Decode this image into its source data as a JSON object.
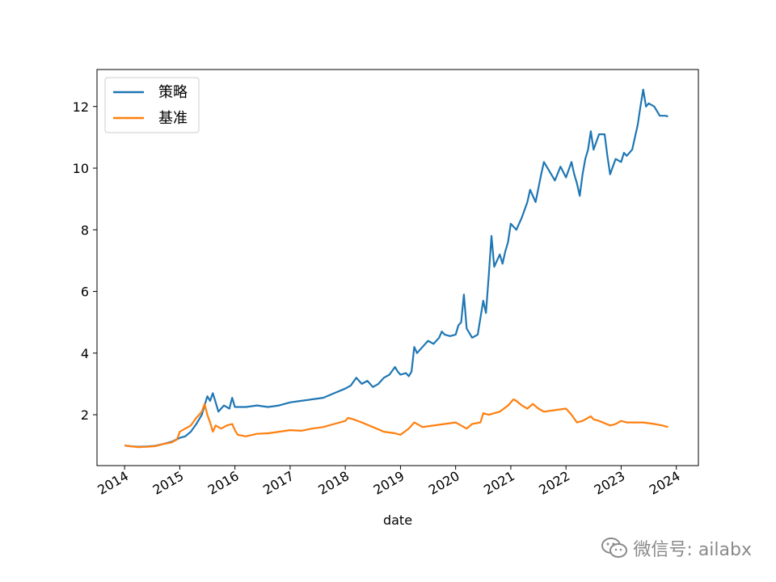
{
  "chart_data": {
    "type": "line",
    "xlabel": "date",
    "ylabel": "",
    "xlim": [
      2013.5,
      2024.4
    ],
    "ylim": [
      0.35,
      13.2
    ],
    "x_ticks": [
      2014,
      2015,
      2016,
      2017,
      2018,
      2019,
      2020,
      2021,
      2022,
      2023,
      2024
    ],
    "x_tick_labels": [
      "2014",
      "2015",
      "2016",
      "2017",
      "2018",
      "2019",
      "2020",
      "2021",
      "2022",
      "2023",
      "2024"
    ],
    "y_ticks": [
      2,
      4,
      6,
      8,
      10,
      12
    ],
    "y_tick_labels": [
      "2",
      "4",
      "6",
      "8",
      "10",
      "12"
    ],
    "grid": false,
    "legend_position": "top-left",
    "series": [
      {
        "name": "策略",
        "color": "#1f77b4",
        "points": [
          [
            2014.0,
            1.0
          ],
          [
            2014.1,
            0.98
          ],
          [
            2014.25,
            0.96
          ],
          [
            2014.4,
            0.97
          ],
          [
            2014.55,
            0.99
          ],
          [
            2014.7,
            1.05
          ],
          [
            2014.85,
            1.12
          ],
          [
            2015.0,
            1.25
          ],
          [
            2015.1,
            1.3
          ],
          [
            2015.2,
            1.45
          ],
          [
            2015.3,
            1.7
          ],
          [
            2015.4,
            2.0
          ],
          [
            2015.45,
            2.3
          ],
          [
            2015.5,
            2.6
          ],
          [
            2015.55,
            2.45
          ],
          [
            2015.6,
            2.7
          ],
          [
            2015.65,
            2.4
          ],
          [
            2015.7,
            2.1
          ],
          [
            2015.8,
            2.3
          ],
          [
            2015.9,
            2.2
          ],
          [
            2015.95,
            2.55
          ],
          [
            2016.0,
            2.25
          ],
          [
            2016.2,
            2.25
          ],
          [
            2016.4,
            2.3
          ],
          [
            2016.6,
            2.25
          ],
          [
            2016.8,
            2.3
          ],
          [
            2016.9,
            2.35
          ],
          [
            2017.0,
            2.4
          ],
          [
            2017.2,
            2.45
          ],
          [
            2017.4,
            2.5
          ],
          [
            2017.6,
            2.55
          ],
          [
            2017.8,
            2.7
          ],
          [
            2018.0,
            2.85
          ],
          [
            2018.1,
            2.95
          ],
          [
            2018.2,
            3.2
          ],
          [
            2018.3,
            3.0
          ],
          [
            2018.4,
            3.1
          ],
          [
            2018.5,
            2.9
          ],
          [
            2018.6,
            3.0
          ],
          [
            2018.7,
            3.2
          ],
          [
            2018.8,
            3.3
          ],
          [
            2018.9,
            3.55
          ],
          [
            2018.95,
            3.4
          ],
          [
            2019.0,
            3.3
          ],
          [
            2019.1,
            3.35
          ],
          [
            2019.15,
            3.25
          ],
          [
            2019.2,
            3.4
          ],
          [
            2019.25,
            4.2
          ],
          [
            2019.3,
            4.0
          ],
          [
            2019.4,
            4.2
          ],
          [
            2019.5,
            4.4
          ],
          [
            2019.6,
            4.3
          ],
          [
            2019.7,
            4.5
          ],
          [
            2019.75,
            4.7
          ],
          [
            2019.8,
            4.6
          ],
          [
            2019.9,
            4.55
          ],
          [
            2020.0,
            4.6
          ],
          [
            2020.05,
            4.9
          ],
          [
            2020.1,
            5.0
          ],
          [
            2020.15,
            5.9
          ],
          [
            2020.2,
            4.8
          ],
          [
            2020.3,
            4.5
          ],
          [
            2020.4,
            4.6
          ],
          [
            2020.5,
            5.7
          ],
          [
            2020.55,
            5.3
          ],
          [
            2020.6,
            6.5
          ],
          [
            2020.65,
            7.8
          ],
          [
            2020.7,
            6.8
          ],
          [
            2020.8,
            7.2
          ],
          [
            2020.85,
            6.9
          ],
          [
            2020.9,
            7.3
          ],
          [
            2020.95,
            7.6
          ],
          [
            2021.0,
            8.2
          ],
          [
            2021.1,
            8.0
          ],
          [
            2021.2,
            8.4
          ],
          [
            2021.3,
            8.9
          ],
          [
            2021.35,
            9.3
          ],
          [
            2021.45,
            8.9
          ],
          [
            2021.55,
            9.8
          ],
          [
            2021.6,
            10.2
          ],
          [
            2021.7,
            9.9
          ],
          [
            2021.8,
            9.6
          ],
          [
            2021.9,
            10.05
          ],
          [
            2022.0,
            9.7
          ],
          [
            2022.1,
            10.2
          ],
          [
            2022.15,
            9.8
          ],
          [
            2022.2,
            9.5
          ],
          [
            2022.25,
            9.1
          ],
          [
            2022.3,
            9.8
          ],
          [
            2022.35,
            10.3
          ],
          [
            2022.4,
            10.6
          ],
          [
            2022.45,
            11.2
          ],
          [
            2022.5,
            10.6
          ],
          [
            2022.6,
            11.1
          ],
          [
            2022.7,
            11.1
          ],
          [
            2022.75,
            10.4
          ],
          [
            2022.8,
            9.8
          ],
          [
            2022.9,
            10.3
          ],
          [
            2023.0,
            10.2
          ],
          [
            2023.05,
            10.5
          ],
          [
            2023.1,
            10.4
          ],
          [
            2023.2,
            10.6
          ],
          [
            2023.25,
            11.0
          ],
          [
            2023.3,
            11.4
          ],
          [
            2023.35,
            12.0
          ],
          [
            2023.4,
            12.55
          ],
          [
            2023.45,
            12.0
          ],
          [
            2023.5,
            12.1
          ],
          [
            2023.6,
            12.0
          ],
          [
            2023.7,
            11.7
          ],
          [
            2023.8,
            11.7
          ],
          [
            2023.85,
            11.68
          ]
        ]
      },
      {
        "name": "基准",
        "color": "#ff7f0e",
        "points": [
          [
            2014.0,
            1.0
          ],
          [
            2014.1,
            0.98
          ],
          [
            2014.25,
            0.95
          ],
          [
            2014.4,
            0.96
          ],
          [
            2014.55,
            0.98
          ],
          [
            2014.7,
            1.05
          ],
          [
            2014.85,
            1.1
          ],
          [
            2014.95,
            1.2
          ],
          [
            2015.0,
            1.45
          ],
          [
            2015.1,
            1.55
          ],
          [
            2015.2,
            1.65
          ],
          [
            2015.3,
            1.9
          ],
          [
            2015.4,
            2.1
          ],
          [
            2015.45,
            2.35
          ],
          [
            2015.5,
            2.0
          ],
          [
            2015.55,
            1.75
          ],
          [
            2015.6,
            1.45
          ],
          [
            2015.65,
            1.65
          ],
          [
            2015.75,
            1.55
          ],
          [
            2015.85,
            1.65
          ],
          [
            2015.95,
            1.7
          ],
          [
            2016.0,
            1.5
          ],
          [
            2016.05,
            1.35
          ],
          [
            2016.2,
            1.3
          ],
          [
            2016.4,
            1.38
          ],
          [
            2016.6,
            1.4
          ],
          [
            2016.8,
            1.45
          ],
          [
            2017.0,
            1.5
          ],
          [
            2017.2,
            1.48
          ],
          [
            2017.4,
            1.55
          ],
          [
            2017.6,
            1.6
          ],
          [
            2017.8,
            1.7
          ],
          [
            2018.0,
            1.8
          ],
          [
            2018.05,
            1.9
          ],
          [
            2018.15,
            1.85
          ],
          [
            2018.3,
            1.75
          ],
          [
            2018.5,
            1.6
          ],
          [
            2018.7,
            1.45
          ],
          [
            2018.9,
            1.4
          ],
          [
            2019.0,
            1.35
          ],
          [
            2019.15,
            1.55
          ],
          [
            2019.25,
            1.75
          ],
          [
            2019.4,
            1.6
          ],
          [
            2019.6,
            1.65
          ],
          [
            2019.8,
            1.7
          ],
          [
            2020.0,
            1.75
          ],
          [
            2020.1,
            1.65
          ],
          [
            2020.2,
            1.55
          ],
          [
            2020.3,
            1.7
          ],
          [
            2020.45,
            1.75
          ],
          [
            2020.5,
            2.05
          ],
          [
            2020.6,
            2.0
          ],
          [
            2020.8,
            2.1
          ],
          [
            2020.95,
            2.3
          ],
          [
            2021.05,
            2.5
          ],
          [
            2021.1,
            2.45
          ],
          [
            2021.2,
            2.3
          ],
          [
            2021.3,
            2.2
          ],
          [
            2021.4,
            2.35
          ],
          [
            2021.5,
            2.2
          ],
          [
            2021.6,
            2.1
          ],
          [
            2021.8,
            2.15
          ],
          [
            2022.0,
            2.2
          ],
          [
            2022.1,
            2.0
          ],
          [
            2022.2,
            1.75
          ],
          [
            2022.3,
            1.8
          ],
          [
            2022.45,
            1.95
          ],
          [
            2022.5,
            1.85
          ],
          [
            2022.6,
            1.8
          ],
          [
            2022.8,
            1.65
          ],
          [
            2022.9,
            1.7
          ],
          [
            2023.0,
            1.8
          ],
          [
            2023.1,
            1.75
          ],
          [
            2023.2,
            1.75
          ],
          [
            2023.4,
            1.75
          ],
          [
            2023.6,
            1.7
          ],
          [
            2023.75,
            1.65
          ],
          [
            2023.85,
            1.6
          ]
        ]
      }
    ]
  },
  "watermark": {
    "icon": "wechat-icon",
    "text": "微信号: ailabx",
    "color": "#8a8a8a"
  }
}
